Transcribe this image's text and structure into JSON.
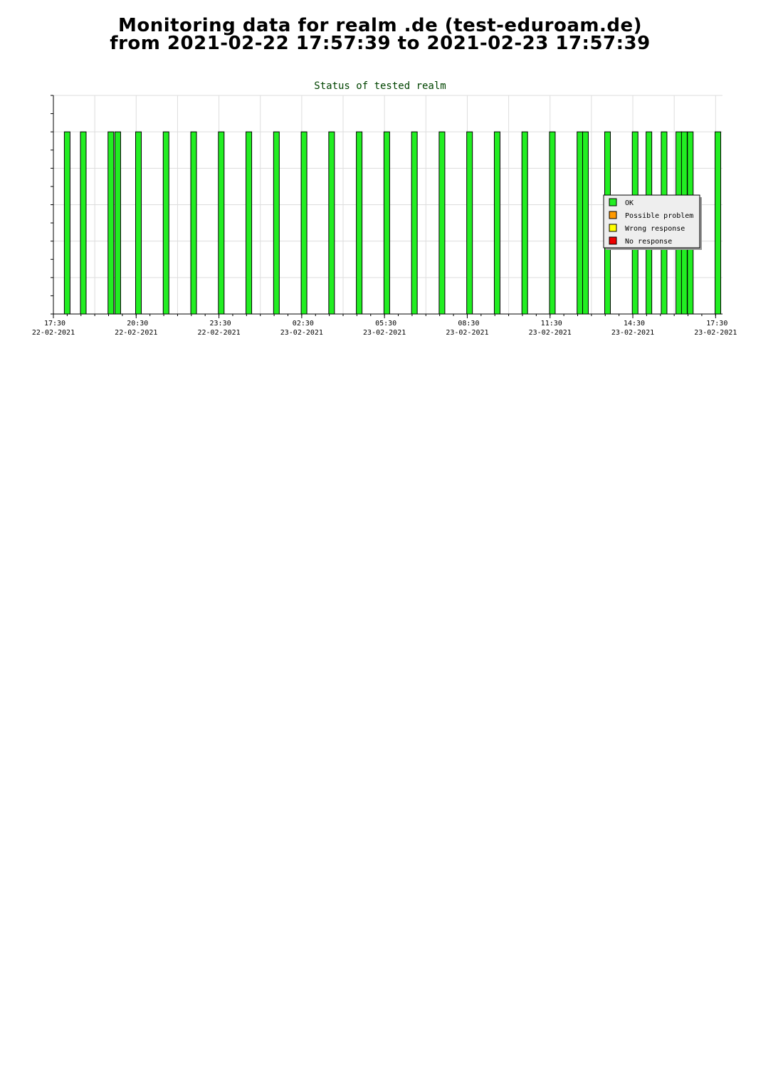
{
  "page_title": {
    "line1": "Monitoring data for realm .de  (test-eduroam.de)",
    "line2": "from 2021-02-22  17:57:39 to 2021-02-23  17:57:39"
  },
  "chart_data": {
    "type": "bar",
    "title": "Status of tested realm",
    "xlabel": "",
    "ylabel": "",
    "x_axis": "time",
    "x_range": [
      "2021-02-22 17:30",
      "2021-02-23 17:45"
    ],
    "x_ticks": [
      {
        "time": "17:30",
        "date": "22-02-2021"
      },
      {
        "time": "20:30",
        "date": "22-02-2021"
      },
      {
        "time": "23:30",
        "date": "22-02-2021"
      },
      {
        "time": "02:30",
        "date": "23-02-2021"
      },
      {
        "time": "05:30",
        "date": "23-02-2021"
      },
      {
        "time": "08:30",
        "date": "23-02-2021"
      },
      {
        "time": "11:30",
        "date": "23-02-2021"
      },
      {
        "time": "14:30",
        "date": "23-02-2021"
      },
      {
        "time": "17:30",
        "date": "23-02-2021"
      }
    ],
    "ylim": [
      0,
      6
    ],
    "grid": true,
    "legend_position": "right",
    "series": [
      {
        "name": "OK",
        "color": "#22ee22"
      },
      {
        "name": "Possible problem",
        "color": "#ff9900"
      },
      {
        "name": "Wrong response",
        "color": "#ffff00"
      },
      {
        "name": "No response",
        "color": "#ee0000"
      }
    ],
    "bars": [
      {
        "time": "2021-02-22 18:00",
        "status": "OK",
        "value": 5
      },
      {
        "time": "2021-02-22 18:35",
        "status": "OK",
        "value": 5
      },
      {
        "time": "2021-02-22 19:35",
        "status": "OK",
        "value": 5
      },
      {
        "time": "2021-02-22 19:50",
        "status": "OK",
        "value": 5
      },
      {
        "time": "2021-02-22 20:35",
        "status": "OK",
        "value": 5
      },
      {
        "time": "2021-02-22 21:35",
        "status": "OK",
        "value": 5
      },
      {
        "time": "2021-02-22 22:35",
        "status": "OK",
        "value": 5
      },
      {
        "time": "2021-02-22 23:35",
        "status": "OK",
        "value": 5
      },
      {
        "time": "2021-02-23 00:35",
        "status": "OK",
        "value": 5
      },
      {
        "time": "2021-02-23 01:35",
        "status": "OK",
        "value": 5
      },
      {
        "time": "2021-02-23 02:35",
        "status": "OK",
        "value": 5
      },
      {
        "time": "2021-02-23 03:35",
        "status": "OK",
        "value": 5
      },
      {
        "time": "2021-02-23 04:35",
        "status": "OK",
        "value": 5
      },
      {
        "time": "2021-02-23 05:35",
        "status": "OK",
        "value": 5
      },
      {
        "time": "2021-02-23 06:35",
        "status": "OK",
        "value": 5
      },
      {
        "time": "2021-02-23 07:35",
        "status": "OK",
        "value": 5
      },
      {
        "time": "2021-02-23 08:35",
        "status": "OK",
        "value": 5
      },
      {
        "time": "2021-02-23 09:35",
        "status": "OK",
        "value": 5
      },
      {
        "time": "2021-02-23 10:35",
        "status": "OK",
        "value": 5
      },
      {
        "time": "2021-02-23 11:35",
        "status": "OK",
        "value": 5
      },
      {
        "time": "2021-02-23 12:35",
        "status": "OK",
        "value": 5
      },
      {
        "time": "2021-02-23 12:47",
        "status": "OK",
        "value": 5
      },
      {
        "time": "2021-02-23 13:35",
        "status": "OK",
        "value": 5
      },
      {
        "time": "2021-02-23 14:35",
        "status": "OK",
        "value": 5
      },
      {
        "time": "2021-02-23 15:05",
        "status": "OK",
        "value": 5
      },
      {
        "time": "2021-02-23 15:38",
        "status": "OK",
        "value": 5
      },
      {
        "time": "2021-02-23 16:10",
        "status": "OK",
        "value": 5
      },
      {
        "time": "2021-02-23 16:22",
        "status": "OK",
        "value": 5
      },
      {
        "time": "2021-02-23 16:35",
        "status": "OK",
        "value": 5
      },
      {
        "time": "2021-02-23 17:35",
        "status": "OK",
        "value": 5
      }
    ]
  }
}
